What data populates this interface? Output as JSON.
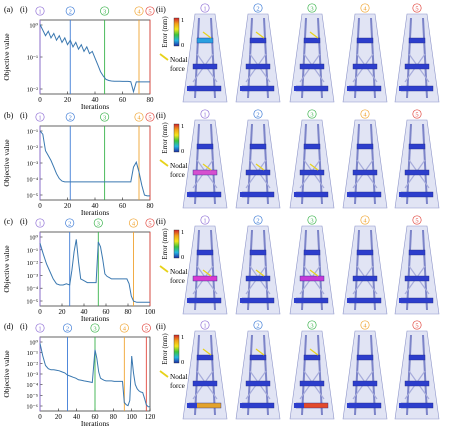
{
  "figure": {
    "panel_ii_label": "(ii)",
    "panel_i_label": "(i)",
    "colorbar": {
      "label": "Error (mm)",
      "max": "1",
      "min": "0"
    },
    "legend_label_line1": "Nodal",
    "legend_label_line2": "force",
    "colors": {
      "line": "#3a78b0",
      "m1": "#8f6fd6",
      "m2": "#3d7bd6",
      "m3": "#38b24a",
      "m4": "#f0a431",
      "m5": "#e2473f",
      "arrow": "#e7d21a",
      "beam": "#2d3ecc",
      "frame": "#c9cdeb"
    }
  },
  "chart_data": [
    {
      "type": "line",
      "panel": "(a)",
      "sub": "(i)",
      "ylabel": "Objective value",
      "xlabel": "Iterations",
      "yscale": "log",
      "yticks": [
        "10⁰",
        "10⁻¹",
        "10⁻²"
      ],
      "ylim_exp": [
        -2.5,
        0.8
      ],
      "xlim": [
        0,
        80
      ],
      "xticks": [
        "0",
        "20",
        "40",
        "60",
        "80"
      ],
      "markers": [
        {
          "label": "1",
          "x": 0
        },
        {
          "label": "2",
          "x": 22
        },
        {
          "label": "3",
          "x": 47
        },
        {
          "label": "4",
          "x": 72
        },
        {
          "label": "5",
          "x": 80
        }
      ],
      "x": [
        0,
        2,
        4,
        6,
        8,
        10,
        12,
        14,
        16,
        18,
        20,
        22,
        24,
        26,
        28,
        30,
        32,
        34,
        36,
        38,
        40,
        42,
        44,
        46,
        48,
        50,
        52,
        54,
        56,
        58,
        60,
        62,
        64,
        66,
        68,
        70,
        72,
        74,
        76,
        78,
        80
      ],
      "y": [
        0.6,
        0.35,
        0.1,
        0.3,
        0.0,
        0.2,
        -0.1,
        0.1,
        -0.2,
        0.0,
        -0.3,
        -0.1,
        -0.4,
        -0.2,
        -0.5,
        -0.3,
        -0.6,
        -0.4,
        -0.7,
        -0.6,
        -0.9,
        -1.2,
        -1.5,
        -1.7,
        -1.85,
        -1.9,
        -1.92,
        -1.93,
        -1.93,
        -1.93,
        -1.94,
        -1.94,
        -1.94,
        -1.95,
        -2.4,
        -1.96,
        -1.96,
        -1.96,
        -1.96,
        -1.96,
        -1.96
      ]
    },
    {
      "type": "line",
      "panel": "(b)",
      "sub": "(i)",
      "ylabel": "Objective value",
      "xlabel": "Iterations",
      "yscale": "log",
      "yticks": [
        "10⁻¹",
        "10⁻²",
        "10⁻³",
        "10⁻⁴",
        "10⁻⁵"
      ],
      "ylim_exp": [
        -5.3,
        -0.8
      ],
      "xlim": [
        0,
        80
      ],
      "xticks": [
        "0",
        "20",
        "40",
        "60",
        "80"
      ],
      "markers": [
        {
          "label": "1",
          "x": 0
        },
        {
          "label": "2",
          "x": 22
        },
        {
          "label": "3",
          "x": 47
        },
        {
          "label": "4",
          "x": 72
        },
        {
          "label": "5",
          "x": 80
        }
      ],
      "x": [
        0,
        2,
        4,
        6,
        8,
        10,
        12,
        14,
        16,
        18,
        20,
        22,
        24,
        26,
        28,
        30,
        32,
        34,
        36,
        38,
        40,
        42,
        44,
        46,
        48,
        50,
        52,
        54,
        56,
        58,
        60,
        62,
        64,
        66,
        68,
        70,
        72,
        74,
        76,
        78,
        80
      ],
      "y": [
        -1.1,
        -1.3,
        -2.3,
        -2.6,
        -2.9,
        -3.3,
        -3.7,
        -4.0,
        -4.15,
        -4.2,
        -4.2,
        -4.2,
        -4.2,
        -4.2,
        -4.2,
        -4.2,
        -4.2,
        -4.2,
        -4.2,
        -4.2,
        -4.2,
        -4.2,
        -4.2,
        -4.2,
        -4.2,
        -4.2,
        -4.2,
        -4.2,
        -4.2,
        -4.2,
        -4.2,
        -4.2,
        -4.2,
        -4.2,
        -3.3,
        -3.0,
        -3.6,
        -4.4,
        -5.0,
        -5.05,
        -5.05
      ]
    },
    {
      "type": "line",
      "panel": "(c)",
      "sub": "(i)",
      "ylabel": "Objective value",
      "xlabel": "Iterations",
      "yscale": "log",
      "yticks": [
        "10⁰",
        "10⁻¹",
        "10⁻²",
        "10⁻³",
        "10⁻⁴",
        "10⁻⁵"
      ],
      "ylim_exp": [
        -5.4,
        0.6
      ],
      "xlim": [
        0,
        100
      ],
      "xticks": [
        "0",
        "20",
        "40",
        "60",
        "80",
        "100"
      ],
      "markers": [
        {
          "label": "1",
          "x": 0
        },
        {
          "label": "2",
          "x": 27
        },
        {
          "label": "3",
          "x": 53
        },
        {
          "label": "4",
          "x": 85
        },
        {
          "label": "5",
          "x": 100
        }
      ],
      "x": [
        0,
        3,
        6,
        9,
        12,
        15,
        18,
        21,
        24,
        27,
        29,
        31,
        33,
        35,
        37,
        39,
        41,
        43,
        45,
        47,
        49,
        51,
        53,
        55,
        57,
        59,
        61,
        63,
        65,
        67,
        69,
        71,
        73,
        75,
        77,
        79,
        81,
        83,
        85,
        88,
        91,
        94,
        97,
        100
      ],
      "y": [
        -0.3,
        -1.2,
        -2.0,
        -2.6,
        -3.2,
        -3.6,
        -3.7,
        -3.7,
        -3.6,
        -3.7,
        -2.5,
        -1.0,
        0.0,
        -1.8,
        -3.2,
        -3.3,
        -3.4,
        -3.5,
        -3.5,
        -3.5,
        -3.5,
        -3.5,
        -0.2,
        -0.6,
        -1.6,
        -2.8,
        -3.0,
        -3.1,
        -3.2,
        -3.2,
        -3.2,
        -3.2,
        -3.2,
        -3.2,
        -3.2,
        -3.2,
        -3.6,
        -4.6,
        -5.0,
        -5.1,
        -5.1,
        -5.1,
        -5.1,
        -5.1
      ]
    },
    {
      "type": "line",
      "panel": "(d)",
      "sub": "(i)",
      "ylabel": "Objective value",
      "xlabel": "Iterations",
      "yscale": "log",
      "yticks": [
        "10⁰",
        "10⁻¹",
        "10⁻²",
        "10⁻³",
        "10⁻⁴",
        "10⁻⁵",
        "10⁻⁶"
      ],
      "ylim_exp": [
        -6.4,
        0.6
      ],
      "xlim": [
        0,
        120
      ],
      "xticks": [
        "0",
        "20",
        "40",
        "60",
        "80",
        "100",
        "120"
      ],
      "markers": [
        {
          "label": "1",
          "x": 0
        },
        {
          "label": "2",
          "x": 30
        },
        {
          "label": "3",
          "x": 60
        },
        {
          "label": "4",
          "x": 92
        },
        {
          "label": "5",
          "x": 116
        }
      ],
      "x": [
        0,
        3,
        6,
        9,
        12,
        15,
        18,
        21,
        24,
        27,
        30,
        33,
        36,
        39,
        42,
        45,
        48,
        51,
        54,
        57,
        60,
        62,
        64,
        66,
        68,
        70,
        72,
        75,
        78,
        81,
        84,
        87,
        90,
        92,
        94,
        96,
        98,
        100,
        102,
        104,
        106,
        108,
        110,
        112,
        114,
        116,
        118,
        120
      ],
      "y": [
        0.0,
        -1.2,
        -2.1,
        -2.4,
        -2.5,
        -2.5,
        -2.55,
        -2.6,
        -2.7,
        -2.8,
        -3.0,
        -3.1,
        -3.2,
        -3.3,
        -3.45,
        -3.5,
        -3.55,
        -3.6,
        -3.65,
        -3.7,
        -0.6,
        -1.4,
        -2.7,
        -3.3,
        -3.4,
        -3.5,
        -3.55,
        -3.55,
        -3.55,
        -3.6,
        -3.6,
        -3.6,
        -3.6,
        -5.6,
        -5.8,
        -5.9,
        -5.4,
        -1.2,
        -2.8,
        -3.9,
        -4.3,
        -4.5,
        -4.6,
        -4.65,
        -5.2,
        -5.8,
        -6.0,
        -6.0
      ]
    }
  ]
}
